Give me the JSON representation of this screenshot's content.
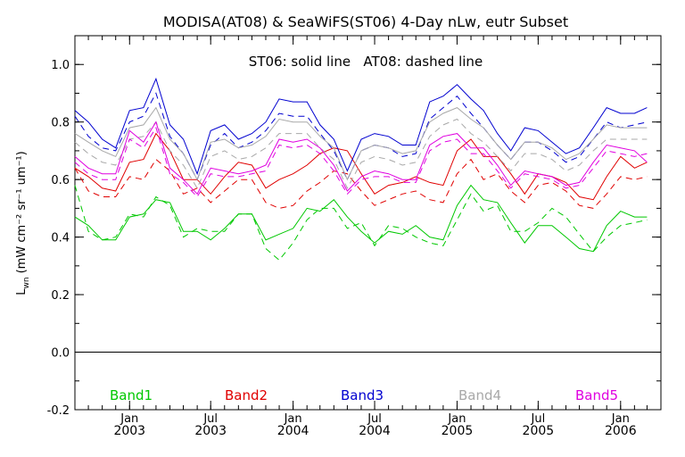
{
  "chart_data": {
    "type": "line",
    "title": "MODISA(AT08) & SeaWiFS(ST06) 4-Day nLw, eutr Subset",
    "annotation": "ST06: solid line   AT08: dashed line",
    "ylabel_main": "L",
    "ylabel_sub": "wn",
    "ylabel_units": "(mW cm⁻² sr⁻¹ um⁻¹)",
    "ylim": [
      -0.2,
      1.1
    ],
    "xlim": [
      "2002-09-01",
      "2006-04-01"
    ],
    "yticks": [
      "-0.2",
      "0.0",
      "0.2",
      "0.4",
      "0.6",
      "0.8",
      "1.0"
    ],
    "xticks_major": [
      {
        "date": "2003-01-01",
        "month": "Jan",
        "year": "2003"
      },
      {
        "date": "2003-07-01",
        "month": "Jul",
        "year": "2003"
      },
      {
        "date": "2004-01-01",
        "month": "Jan",
        "year": "2004"
      },
      {
        "date": "2004-07-01",
        "month": "Jul",
        "year": "2004"
      },
      {
        "date": "2005-01-01",
        "month": "Jan",
        "year": "2005"
      },
      {
        "date": "2005-07-01",
        "month": "Jul",
        "year": "2005"
      },
      {
        "date": "2006-01-01",
        "month": "Jan",
        "year": "2006"
      }
    ],
    "zero_line": 0.0,
    "grid": false,
    "x": [
      "2002-09-01",
      "2002-10-01",
      "2002-11-01",
      "2002-12-01",
      "2003-01-01",
      "2003-02-01",
      "2003-03-01",
      "2003-04-01",
      "2003-05-01",
      "2003-06-01",
      "2003-07-01",
      "2003-08-01",
      "2003-09-01",
      "2003-10-01",
      "2003-11-01",
      "2003-12-01",
      "2004-01-01",
      "2004-02-01",
      "2004-03-01",
      "2004-04-01",
      "2004-05-01",
      "2004-06-01",
      "2004-07-01",
      "2004-08-01",
      "2004-09-01",
      "2004-10-01",
      "2004-11-01",
      "2004-12-01",
      "2005-01-01",
      "2005-02-01",
      "2005-03-01",
      "2005-04-01",
      "2005-05-01",
      "2005-06-01",
      "2005-07-01",
      "2005-08-01",
      "2005-09-01",
      "2005-10-01",
      "2005-11-01",
      "2005-12-01",
      "2006-01-01",
      "2006-02-01",
      "2006-03-01"
    ],
    "series": [
      {
        "name": "Band1",
        "color": "#00c800",
        "style": "solid",
        "values": [
          0.47,
          0.44,
          0.39,
          0.39,
          0.47,
          0.48,
          0.53,
          0.52,
          0.42,
          0.42,
          0.39,
          0.43,
          0.48,
          0.48,
          0.39,
          0.41,
          0.43,
          0.5,
          0.49,
          0.53,
          0.47,
          0.42,
          0.38,
          0.42,
          0.41,
          0.44,
          0.4,
          0.39,
          0.51,
          0.58,
          0.53,
          0.52,
          0.45,
          0.38,
          0.44,
          0.44,
          0.4,
          0.36,
          0.35,
          0.44,
          0.49,
          0.47,
          0.47
        ]
      },
      {
        "name": "Band1",
        "color": "#00c800",
        "style": "dashed",
        "values": [
          0.58,
          0.42,
          0.39,
          0.4,
          0.48,
          0.47,
          0.54,
          0.51,
          0.4,
          0.43,
          0.42,
          0.42,
          0.48,
          0.48,
          0.36,
          0.32,
          0.38,
          0.46,
          0.5,
          0.5,
          0.43,
          0.45,
          0.37,
          0.44,
          0.43,
          0.4,
          0.38,
          0.37,
          0.46,
          0.55,
          0.49,
          0.51,
          0.42,
          0.42,
          0.45,
          0.5,
          0.47,
          0.41,
          0.35,
          0.4,
          0.44,
          0.45,
          0.46
        ]
      },
      {
        "name": "Band2",
        "color": "#e00000",
        "style": "solid",
        "values": [
          0.64,
          0.61,
          0.57,
          0.56,
          0.66,
          0.67,
          0.76,
          0.7,
          0.6,
          0.6,
          0.55,
          0.61,
          0.66,
          0.65,
          0.57,
          0.6,
          0.62,
          0.65,
          0.69,
          0.71,
          0.7,
          0.62,
          0.55,
          0.58,
          0.59,
          0.61,
          0.59,
          0.58,
          0.7,
          0.74,
          0.68,
          0.68,
          0.62,
          0.55,
          0.62,
          0.61,
          0.59,
          0.54,
          0.53,
          0.61,
          0.68,
          0.64,
          0.66
        ]
      },
      {
        "name": "Band2",
        "color": "#e00000",
        "style": "dashed",
        "values": [
          0.64,
          0.56,
          0.54,
          0.54,
          0.61,
          0.6,
          0.67,
          0.63,
          0.55,
          0.57,
          0.52,
          0.56,
          0.6,
          0.6,
          0.52,
          0.5,
          0.51,
          0.56,
          0.59,
          0.63,
          0.62,
          0.56,
          0.51,
          0.53,
          0.55,
          0.56,
          0.53,
          0.52,
          0.62,
          0.67,
          0.6,
          0.62,
          0.56,
          0.52,
          0.58,
          0.59,
          0.56,
          0.51,
          0.5,
          0.55,
          0.61,
          0.6,
          0.61
        ]
      },
      {
        "name": "Band3",
        "color": "#0000d0",
        "style": "solid",
        "values": [
          0.84,
          0.8,
          0.74,
          0.71,
          0.84,
          0.85,
          0.95,
          0.79,
          0.74,
          0.62,
          0.77,
          0.79,
          0.74,
          0.76,
          0.8,
          0.88,
          0.87,
          0.87,
          0.79,
          0.74,
          0.63,
          0.74,
          0.76,
          0.75,
          0.72,
          0.72,
          0.87,
          0.89,
          0.93,
          0.88,
          0.84,
          0.76,
          0.7,
          0.78,
          0.77,
          0.73,
          0.69,
          0.71,
          0.78,
          0.85,
          0.83,
          0.83,
          0.85
        ]
      },
      {
        "name": "Band3",
        "color": "#0000d0",
        "style": "dashed",
        "values": [
          0.82,
          0.75,
          0.71,
          0.7,
          0.8,
          0.82,
          0.9,
          0.75,
          0.69,
          0.6,
          0.72,
          0.76,
          0.71,
          0.73,
          0.77,
          0.83,
          0.82,
          0.82,
          0.76,
          0.7,
          0.6,
          0.7,
          0.72,
          0.71,
          0.68,
          0.69,
          0.81,
          0.85,
          0.89,
          0.83,
          0.78,
          0.72,
          0.67,
          0.73,
          0.73,
          0.7,
          0.66,
          0.68,
          0.74,
          0.8,
          0.78,
          0.79,
          0.8
        ]
      },
      {
        "name": "Band4",
        "color": "#a8a8a8",
        "style": "solid",
        "values": [
          0.76,
          0.73,
          0.7,
          0.68,
          0.78,
          0.79,
          0.85,
          0.74,
          0.69,
          0.6,
          0.73,
          0.74,
          0.71,
          0.72,
          0.75,
          0.81,
          0.8,
          0.8,
          0.75,
          0.71,
          0.6,
          0.7,
          0.72,
          0.71,
          0.69,
          0.7,
          0.8,
          0.83,
          0.85,
          0.81,
          0.78,
          0.72,
          0.67,
          0.73,
          0.73,
          0.71,
          0.67,
          0.69,
          0.74,
          0.79,
          0.78,
          0.78,
          0.78
        ]
      },
      {
        "name": "Band4",
        "color": "#a8a8a8",
        "style": "dashed",
        "values": [
          0.73,
          0.69,
          0.66,
          0.65,
          0.74,
          0.75,
          0.8,
          0.7,
          0.65,
          0.57,
          0.68,
          0.7,
          0.67,
          0.68,
          0.71,
          0.76,
          0.76,
          0.76,
          0.71,
          0.67,
          0.57,
          0.66,
          0.68,
          0.67,
          0.65,
          0.66,
          0.75,
          0.79,
          0.81,
          0.76,
          0.73,
          0.68,
          0.63,
          0.69,
          0.69,
          0.67,
          0.63,
          0.65,
          0.7,
          0.74,
          0.74,
          0.74,
          0.74
        ]
      },
      {
        "name": "Band5",
        "color": "#e000e0",
        "style": "solid",
        "values": [
          0.68,
          0.64,
          0.62,
          0.62,
          0.77,
          0.73,
          0.8,
          0.64,
          0.6,
          0.55,
          0.64,
          0.63,
          0.62,
          0.63,
          0.65,
          0.74,
          0.73,
          0.74,
          0.71,
          0.65,
          0.56,
          0.61,
          0.63,
          0.62,
          0.6,
          0.6,
          0.72,
          0.75,
          0.76,
          0.71,
          0.71,
          0.65,
          0.58,
          0.63,
          0.62,
          0.61,
          0.58,
          0.59,
          0.66,
          0.72,
          0.71,
          0.7,
          0.66
        ]
      },
      {
        "name": "Band5",
        "color": "#e000e0",
        "style": "dashed",
        "values": [
          0.66,
          0.62,
          0.6,
          0.6,
          0.74,
          0.71,
          0.78,
          0.62,
          0.59,
          0.54,
          0.62,
          0.61,
          0.61,
          0.62,
          0.63,
          0.72,
          0.71,
          0.72,
          0.69,
          0.63,
          0.55,
          0.6,
          0.61,
          0.61,
          0.59,
          0.59,
          0.7,
          0.73,
          0.74,
          0.69,
          0.69,
          0.63,
          0.57,
          0.62,
          0.61,
          0.6,
          0.57,
          0.58,
          0.64,
          0.7,
          0.69,
          0.68,
          0.69
        ]
      }
    ],
    "legend": [
      {
        "label": "Band1",
        "color": "#00c800"
      },
      {
        "label": "Band2",
        "color": "#e00000"
      },
      {
        "label": "Band3",
        "color": "#0000d0"
      },
      {
        "label": "Band4",
        "color": "#a8a8a8"
      },
      {
        "label": "Band5",
        "color": "#e000e0"
      }
    ],
    "legend_placement": "bottom-inside"
  }
}
